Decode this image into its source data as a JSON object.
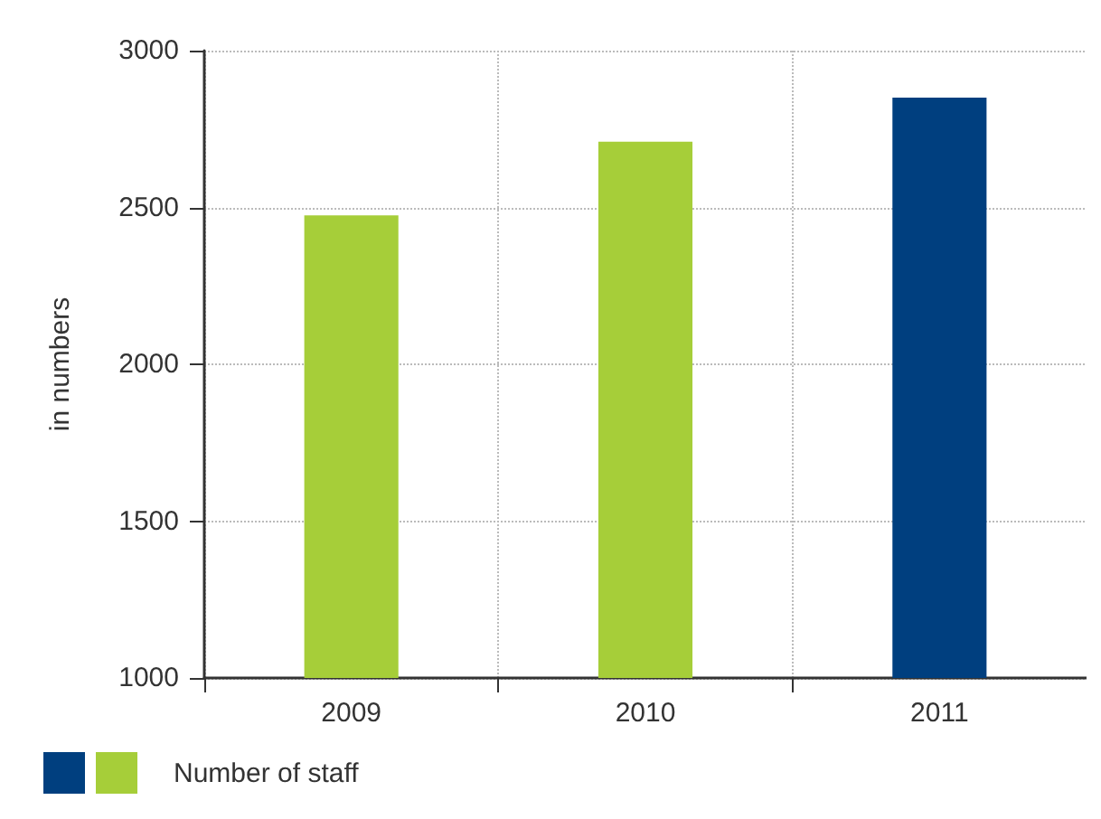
{
  "chart_data": {
    "type": "bar",
    "ylabel": "in numbers",
    "categories": [
      "2009",
      "2010",
      "2011"
    ],
    "series": [
      {
        "name": "Number of staff",
        "values": [
          2475,
          2710,
          2850
        ],
        "colors": [
          "#a6ce39",
          "#a6ce39",
          "#003f7f"
        ]
      }
    ],
    "ylim": [
      1000,
      3000
    ],
    "yticks": [
      1000,
      1500,
      2000,
      2500,
      3000
    ],
    "grid": true,
    "legend": "bottom left"
  }
}
